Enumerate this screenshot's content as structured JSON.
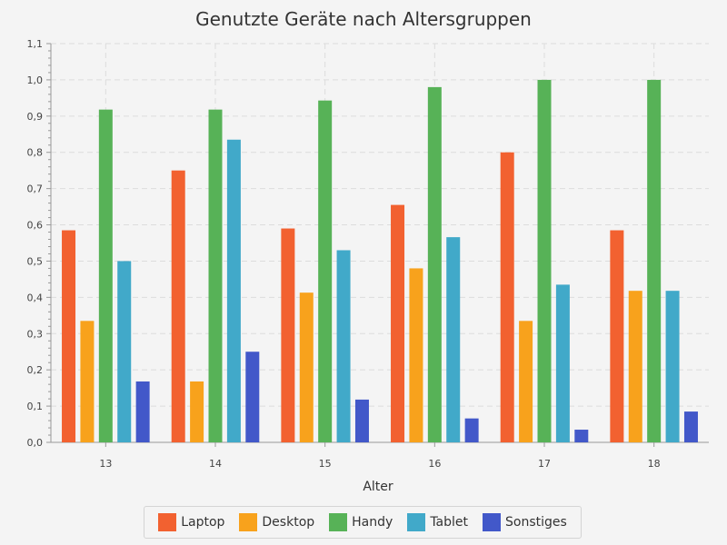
{
  "chart_data": {
    "type": "bar",
    "title": "Genutzte Geräte nach Altersgruppen",
    "xlabel": "Alter",
    "ylabel": "",
    "categories": [
      "13",
      "14",
      "15",
      "16",
      "17",
      "18"
    ],
    "ylim": [
      0,
      1.1
    ],
    "y_ticks": [
      "0,0",
      "0,1",
      "0,2",
      "0,3",
      "0,4",
      "0,5",
      "0,6",
      "0,7",
      "0,8",
      "0,9",
      "1,0",
      "1,1"
    ],
    "grid": true,
    "legend_position": "bottom",
    "series": [
      {
        "name": "Laptop",
        "color": "#f26130",
        "values": [
          0.585,
          0.75,
          0.59,
          0.655,
          0.8,
          0.585
        ]
      },
      {
        "name": "Desktop",
        "color": "#f8a21c",
        "values": [
          0.335,
          0.168,
          0.413,
          0.48,
          0.335,
          0.418
        ]
      },
      {
        "name": "Handy",
        "color": "#57b257",
        "values": [
          0.918,
          0.918,
          0.943,
          0.98,
          1.0,
          1.0
        ]
      },
      {
        "name": "Tablet",
        "color": "#41a9c9",
        "values": [
          0.5,
          0.835,
          0.53,
          0.566,
          0.435,
          0.418
        ]
      },
      {
        "name": "Sonstiges",
        "color": "#4258c9",
        "values": [
          0.168,
          0.25,
          0.118,
          0.066,
          0.035,
          0.085
        ]
      }
    ]
  }
}
